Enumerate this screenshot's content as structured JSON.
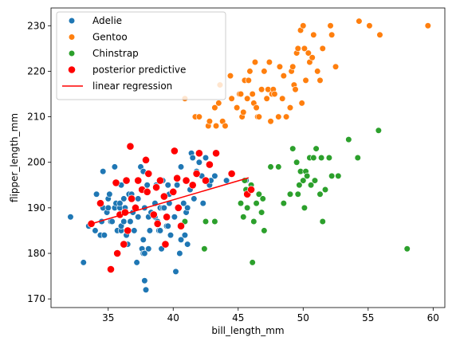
{
  "chart_data": {
    "type": "scatter",
    "title": "",
    "xlabel": "bill_length_mm",
    "ylabel": "flipper_length_mm",
    "xlim": [
      30.6,
      60.9
    ],
    "ylim": [
      168.1,
      233.9
    ],
    "xticks": [
      35,
      40,
      45,
      50,
      55,
      60
    ],
    "yticks": [
      170,
      180,
      190,
      200,
      210,
      220,
      230
    ],
    "grid": false,
    "legend_position": "top-left",
    "series": [
      {
        "name": "Adelie",
        "type": "scatter",
        "color": "#1f77b4",
        "points": [
          [
            32.1,
            188
          ],
          [
            33.1,
            178
          ],
          [
            33.5,
            186
          ],
          [
            34.0,
            185
          ],
          [
            34.1,
            193
          ],
          [
            34.4,
            184
          ],
          [
            34.5,
            187
          ],
          [
            34.6,
            190
          ],
          [
            34.6,
            198
          ],
          [
            34.7,
            184
          ],
          [
            34.9,
            189
          ],
          [
            35.0,
            190
          ],
          [
            35.0,
            192
          ],
          [
            35.1,
            193
          ],
          [
            35.2,
            187
          ],
          [
            35.3,
            187
          ],
          [
            35.5,
            190
          ],
          [
            35.5,
            199
          ],
          [
            35.6,
            191
          ],
          [
            35.7,
            185
          ],
          [
            35.9,
            190
          ],
          [
            35.9,
            191
          ],
          [
            36.0,
            185
          ],
          [
            36.0,
            186
          ],
          [
            36.0,
            195
          ],
          [
            36.2,
            187
          ],
          [
            36.2,
            192
          ],
          [
            36.3,
            190
          ],
          [
            36.4,
            184
          ],
          [
            36.5,
            182
          ],
          [
            36.6,
            185
          ],
          [
            36.6,
            193
          ],
          [
            36.7,
            187
          ],
          [
            36.8,
            193
          ],
          [
            36.9,
            189
          ],
          [
            37.0,
            185
          ],
          [
            37.2,
            178
          ],
          [
            37.3,
            188
          ],
          [
            37.3,
            192
          ],
          [
            37.5,
            199
          ],
          [
            37.6,
            181
          ],
          [
            37.6,
            194
          ],
          [
            37.7,
            180
          ],
          [
            37.7,
            183
          ],
          [
            37.7,
            198
          ],
          [
            37.8,
            174
          ],
          [
            37.8,
            180
          ],
          [
            37.8,
            190
          ],
          [
            37.9,
            172
          ],
          [
            38.0,
            195
          ],
          [
            38.1,
            181
          ],
          [
            38.1,
            188
          ],
          [
            38.2,
            185
          ],
          [
            38.3,
            189
          ],
          [
            38.6,
            188
          ],
          [
            38.6,
            191
          ],
          [
            38.7,
            195
          ],
          [
            38.8,
            187
          ],
          [
            38.9,
            185
          ],
          [
            39.0,
            185
          ],
          [
            39.0,
            190
          ],
          [
            39.1,
            181
          ],
          [
            39.2,
            190
          ],
          [
            39.2,
            196
          ],
          [
            39.3,
            190
          ],
          [
            39.5,
            186
          ],
          [
            39.6,
            186
          ],
          [
            39.6,
            195
          ],
          [
            39.7,
            191
          ],
          [
            39.7,
            193
          ],
          [
            39.8,
            184
          ],
          [
            40.1,
            188
          ],
          [
            40.2,
            176
          ],
          [
            40.3,
            195
          ],
          [
            40.5,
            180
          ],
          [
            40.6,
            183
          ],
          [
            40.6,
            199
          ],
          [
            40.8,
            191
          ],
          [
            40.9,
            184
          ],
          [
            41.0,
            189
          ],
          [
            41.1,
            182
          ],
          [
            41.1,
            190
          ],
          [
            41.3,
            194
          ],
          [
            41.4,
            202
          ],
          [
            41.5,
            201
          ],
          [
            41.6,
            192
          ],
          [
            41.8,
            198
          ],
          [
            42.0,
            200
          ],
          [
            42.2,
            197
          ],
          [
            42.3,
            191
          ],
          [
            42.5,
            201
          ],
          [
            42.8,
            195
          ],
          [
            42.9,
            196
          ],
          [
            43.2,
            197
          ],
          [
            44.1,
            196
          ],
          [
            45.6,
            196
          ],
          [
            46.0,
            195
          ]
        ]
      },
      {
        "name": "Gentoo",
        "type": "scatter",
        "color": "#ff7f0e",
        "points": [
          [
            40.9,
            214
          ],
          [
            41.7,
            210
          ],
          [
            42.0,
            210
          ],
          [
            42.7,
            208
          ],
          [
            42.8,
            209
          ],
          [
            43.2,
            212
          ],
          [
            43.3,
            208
          ],
          [
            43.5,
            213
          ],
          [
            43.6,
            217
          ],
          [
            43.8,
            209
          ],
          [
            44.0,
            208
          ],
          [
            44.4,
            219
          ],
          [
            44.5,
            214
          ],
          [
            44.9,
            212
          ],
          [
            45.1,
            215
          ],
          [
            45.2,
            215
          ],
          [
            45.3,
            210
          ],
          [
            45.4,
            211
          ],
          [
            45.5,
            218
          ],
          [
            45.7,
            214
          ],
          [
            45.8,
            218
          ],
          [
            45.9,
            220
          ],
          [
            46.1,
            215
          ],
          [
            46.2,
            213
          ],
          [
            46.3,
            222
          ],
          [
            46.4,
            212
          ],
          [
            46.5,
            210
          ],
          [
            46.6,
            210
          ],
          [
            46.8,
            216
          ],
          [
            47.0,
            220
          ],
          [
            47.2,
            214
          ],
          [
            47.3,
            216
          ],
          [
            47.4,
            222
          ],
          [
            47.5,
            209
          ],
          [
            47.6,
            215
          ],
          [
            47.7,
            216
          ],
          [
            47.8,
            215
          ],
          [
            48.1,
            210
          ],
          [
            48.2,
            221
          ],
          [
            48.4,
            214
          ],
          [
            48.5,
            219
          ],
          [
            48.7,
            210
          ],
          [
            49.0,
            212
          ],
          [
            49.1,
            220
          ],
          [
            49.2,
            221
          ],
          [
            49.3,
            217
          ],
          [
            49.4,
            216
          ],
          [
            49.5,
            224
          ],
          [
            49.6,
            225
          ],
          [
            49.8,
            229
          ],
          [
            49.9,
            213
          ],
          [
            50.0,
            230
          ],
          [
            50.1,
            225
          ],
          [
            50.2,
            218
          ],
          [
            50.4,
            224
          ],
          [
            50.5,
            222
          ],
          [
            50.7,
            223
          ],
          [
            50.8,
            228
          ],
          [
            51.1,
            220
          ],
          [
            51.3,
            218
          ],
          [
            51.5,
            225
          ],
          [
            52.1,
            230
          ],
          [
            52.2,
            228
          ],
          [
            52.5,
            221
          ],
          [
            54.3,
            231
          ],
          [
            55.1,
            230
          ],
          [
            55.9,
            228
          ],
          [
            59.6,
            230
          ]
        ]
      },
      {
        "name": "Chinstrap",
        "type": "scatter",
        "color": "#2ca02c",
        "points": [
          [
            40.9,
            187
          ],
          [
            42.4,
            181
          ],
          [
            42.5,
            187
          ],
          [
            43.2,
            187
          ],
          [
            45.2,
            191
          ],
          [
            45.4,
            188
          ],
          [
            45.5,
            196
          ],
          [
            45.6,
            194
          ],
          [
            45.7,
            190
          ],
          [
            46.0,
            195
          ],
          [
            46.1,
            178
          ],
          [
            46.2,
            187
          ],
          [
            46.4,
            191
          ],
          [
            46.6,
            193
          ],
          [
            46.8,
            189
          ],
          [
            46.9,
            192
          ],
          [
            47.0,
            185
          ],
          [
            47.5,
            199
          ],
          [
            48.1,
            199
          ],
          [
            48.5,
            191
          ],
          [
            49.0,
            193
          ],
          [
            49.2,
            203
          ],
          [
            49.5,
            200
          ],
          [
            49.6,
            193
          ],
          [
            49.7,
            195
          ],
          [
            49.8,
            198
          ],
          [
            50.0,
            196
          ],
          [
            50.1,
            190
          ],
          [
            50.2,
            198
          ],
          [
            50.3,
            197
          ],
          [
            50.5,
            201
          ],
          [
            50.6,
            195
          ],
          [
            50.8,
            201
          ],
          [
            50.9,
            196
          ],
          [
            51.0,
            203
          ],
          [
            51.3,
            193
          ],
          [
            51.4,
            201
          ],
          [
            51.5,
            187
          ],
          [
            51.7,
            194
          ],
          [
            52.0,
            201
          ],
          [
            52.2,
            197
          ],
          [
            52.7,
            197
          ],
          [
            53.5,
            205
          ],
          [
            54.2,
            201
          ],
          [
            55.8,
            207
          ],
          [
            58.0,
            181
          ]
        ]
      },
      {
        "name": "posterior predictive",
        "type": "scatter",
        "color": "#ff0000",
        "points": [
          [
            33.7,
            186.5
          ],
          [
            34.4,
            191
          ],
          [
            35.2,
            176.5
          ],
          [
            35.6,
            195.5
          ],
          [
            35.7,
            180
          ],
          [
            35.9,
            188.5
          ],
          [
            36.2,
            182
          ],
          [
            36.3,
            189
          ],
          [
            36.4,
            196
          ],
          [
            36.5,
            185
          ],
          [
            36.7,
            203.5
          ],
          [
            36.8,
            192
          ],
          [
            37.1,
            190
          ],
          [
            37.3,
            196
          ],
          [
            37.6,
            194
          ],
          [
            37.9,
            200.5
          ],
          [
            38.0,
            193.5
          ],
          [
            38.1,
            197.5
          ],
          [
            38.5,
            188.5
          ],
          [
            38.7,
            194.5
          ],
          [
            38.8,
            186.5
          ],
          [
            39.0,
            196
          ],
          [
            39.3,
            192.5
          ],
          [
            39.4,
            182
          ],
          [
            39.5,
            188
          ],
          [
            40.0,
            193.5
          ],
          [
            40.1,
            202.5
          ],
          [
            40.3,
            196.5
          ],
          [
            40.4,
            190
          ],
          [
            40.6,
            186
          ],
          [
            41.0,
            196
          ],
          [
            41.5,
            195
          ],
          [
            41.8,
            197.5
          ],
          [
            42.0,
            202
          ],
          [
            42.5,
            196
          ],
          [
            42.8,
            199.5
          ],
          [
            43.3,
            202
          ],
          [
            44.5,
            197.5
          ],
          [
            45.7,
            193
          ],
          [
            46.0,
            194
          ]
        ]
      },
      {
        "name": "linear regression",
        "type": "line",
        "color": "#ff0000",
        "x": [
          33.7,
          45.8
        ],
        "y": [
          186.5,
          196.6
        ]
      }
    ]
  }
}
